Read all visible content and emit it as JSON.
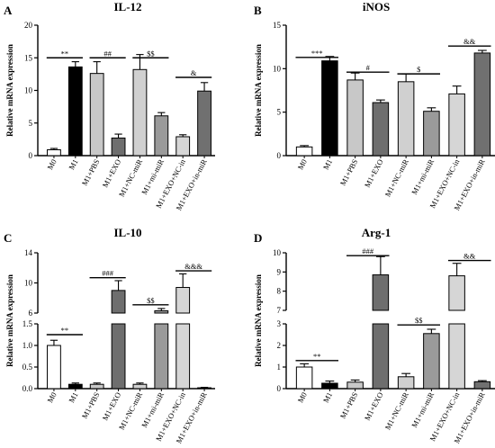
{
  "categories": [
    "M0",
    "M1",
    "M1+PBS",
    "M1+EXO",
    "M1+NC-miR",
    "M1+mi-miR",
    "M1+EXO+NC-in",
    "M1+EXO+in-miR"
  ],
  "colors": [
    "#ffffff",
    "#000000",
    "#c8c8c8",
    "#6e6e6e",
    "#d0d0d0",
    "#9a9a9a",
    "#d6d6d6",
    "#707070"
  ],
  "chart_data": [
    {
      "panel": "A",
      "title": "IL-12",
      "type": "bar",
      "ylabel": "Relative mRNA expression",
      "ylim": [
        0,
        20
      ],
      "yticks": [
        "0",
        "5",
        "10",
        "15",
        "20"
      ],
      "values": [
        0.9,
        13.6,
        12.6,
        2.7,
        13.2,
        6.1,
        2.9,
        9.9
      ],
      "errors": [
        0.2,
        0.8,
        1.8,
        0.6,
        2.3,
        0.5,
        0.3,
        1.3
      ],
      "annotations": [
        {
          "text": "**",
          "from": 0,
          "to": 1,
          "y": 15.0
        },
        {
          "text": "##",
          "from": 2,
          "to": 3,
          "y": 15.0
        },
        {
          "text": "$$",
          "from": 4,
          "to": 5,
          "y": 15.0
        },
        {
          "text": "&",
          "from": 6,
          "to": 7,
          "y": 12.0
        }
      ]
    },
    {
      "panel": "B",
      "title": "iNOS",
      "type": "bar",
      "ylabel": "Relative mRNA expression",
      "ylim": [
        0,
        15
      ],
      "yticks": [
        "0",
        "5",
        "10",
        "15"
      ],
      "values": [
        1.0,
        10.9,
        8.7,
        6.1,
        8.5,
        5.1,
        7.1,
        11.8
      ],
      "errors": [
        0.15,
        0.5,
        0.8,
        0.3,
        0.9,
        0.4,
        0.9,
        0.3
      ],
      "annotations": [
        {
          "text": "***",
          "from": 0,
          "to": 1,
          "y": 11.3
        },
        {
          "text": "#",
          "from": 2,
          "to": 3,
          "y": 9.6
        },
        {
          "text": "$",
          "from": 4,
          "to": 5,
          "y": 9.4
        },
        {
          "text": "&&",
          "from": 6,
          "to": 7,
          "y": 12.6
        }
      ]
    },
    {
      "panel": "C",
      "title": "IL-10",
      "type": "bar",
      "ylabel": "Relative mRNA expression",
      "broken_axis": true,
      "ylim_lower": [
        0,
        1.5
      ],
      "yticks_lower": [
        "0.0",
        "0.5",
        "1.0",
        "1.5"
      ],
      "ylim_upper": [
        6,
        14
      ],
      "yticks_upper": [
        "6",
        "10",
        "14"
      ],
      "values": [
        1.0,
        0.1,
        0.1,
        9.0,
        0.1,
        6.3,
        9.4,
        0.02
      ],
      "errors": [
        0.12,
        0.03,
        0.03,
        1.3,
        0.03,
        0.3,
        1.8,
        0.01
      ],
      "annotations": [
        {
          "text": "**",
          "from": 0,
          "to": 1,
          "y": 1.25
        },
        {
          "text": "###",
          "from": 2,
          "to": 3,
          "y": 10.7
        },
        {
          "text": "$$",
          "from": 4,
          "to": 5,
          "y": 7.1
        },
        {
          "text": "&&&",
          "from": 6,
          "to": 7,
          "y": 11.6
        }
      ]
    },
    {
      "panel": "D",
      "title": "Arg-1",
      "type": "bar",
      "ylabel": "Relative mRNA expression",
      "broken_axis": true,
      "ylim_lower": [
        0,
        3
      ],
      "yticks_lower": [
        "0",
        "1",
        "2",
        "3"
      ],
      "ylim_upper": [
        7,
        10
      ],
      "yticks_upper": [
        "7",
        "8",
        "9",
        "10"
      ],
      "values": [
        1.0,
        0.25,
        0.3,
        8.85,
        0.55,
        2.55,
        8.8,
        0.32
      ],
      "errors": [
        0.15,
        0.1,
        0.1,
        0.95,
        0.15,
        0.2,
        0.65,
        0.05
      ],
      "annotations": [
        {
          "text": "**",
          "from": 0,
          "to": 1,
          "y": 1.3
        },
        {
          "text": "###",
          "from": 2,
          "to": 3,
          "y": 9.85
        },
        {
          "text": "$$",
          "from": 4,
          "to": 5,
          "y": 2.95
        },
        {
          "text": "&&",
          "from": 6,
          "to": 7,
          "y": 9.6
        }
      ]
    }
  ]
}
